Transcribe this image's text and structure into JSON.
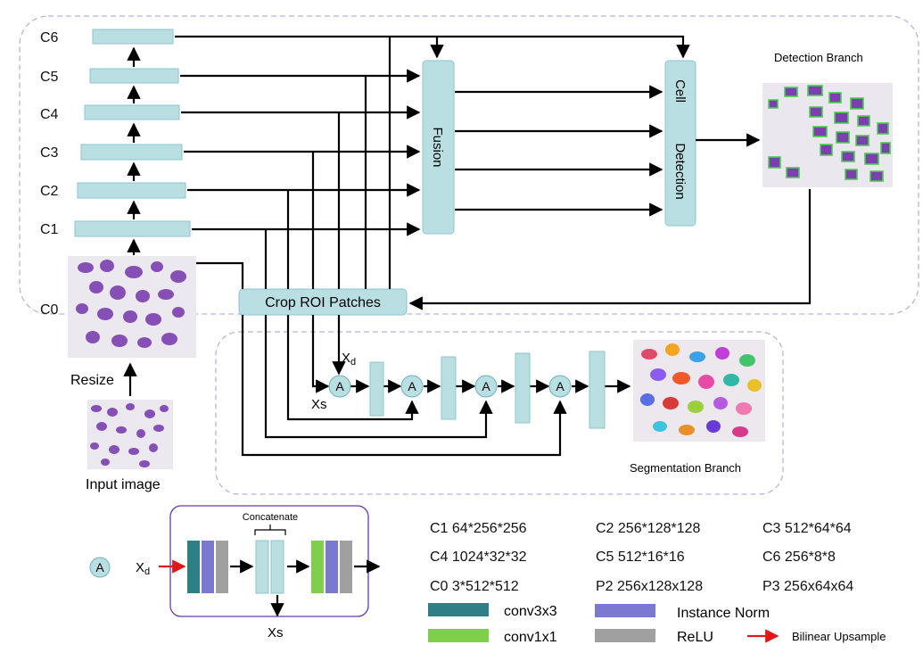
{
  "backbone": {
    "layers": [
      "C6",
      "C5",
      "C4",
      "C3",
      "C2",
      "C1"
    ],
    "c0_label": "C0",
    "resize_label": "Resize",
    "input_label": "Input image"
  },
  "fusion_label": "Fusion",
  "cell_detection": {
    "line1": "Cell",
    "line2": "Detection"
  },
  "detection_title": "Detection Branch",
  "crop_label": "Crop ROI Patches",
  "segmentation": {
    "xd": "X",
    "xd_sub": "d",
    "xs": "Xs",
    "node": "A",
    "title": "Segmentation Branch"
  },
  "module": {
    "node": "A",
    "xd": "X",
    "xd_sub": "d",
    "concat": "Concatenate",
    "xs": "Xs"
  },
  "shapes": [
    "C1 64*256*256",
    "C2 256*128*128",
    "C3 512*64*64",
    "C4 1024*32*32",
    "C5 512*16*16",
    "C6 256*8*8",
    "C0 3*512*512",
    "P2 256x128x128",
    "P3 256x64x64"
  ],
  "legend": {
    "conv3": "conv3x3",
    "norm": "Instance Norm",
    "conv1": "conv1x1",
    "relu": "ReLU",
    "upsample": "Bilinear Upsample"
  },
  "colors": {
    "block": "#b9dfe3",
    "block_border": "#8cc5cb",
    "conv3": "#2f7f86",
    "norm": "#7b78d0",
    "conv1": "#7fcf4a",
    "relu": "#a0a0a0",
    "upsample": "#e01818",
    "region_border": "#b8b4dc",
    "stain": "#7b3fb0"
  }
}
